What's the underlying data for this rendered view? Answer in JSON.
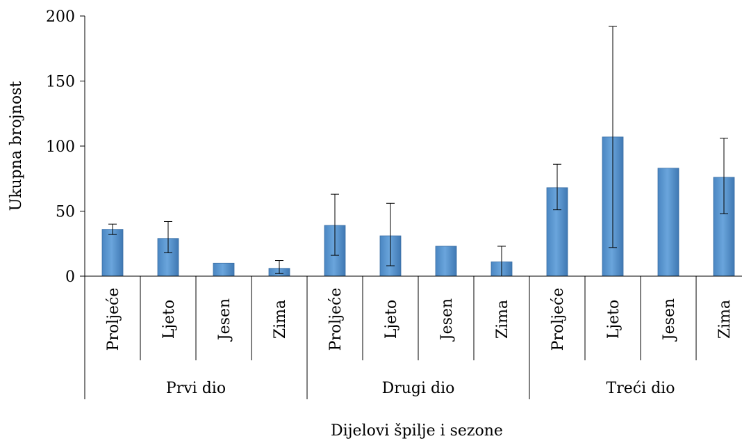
{
  "chart_data": {
    "type": "bar",
    "xlabel": "Dijelovi špilje i sezone",
    "ylabel": "Ukupna brojnost",
    "ylim": [
      0,
      200
    ],
    "yticks": [
      0,
      50,
      100,
      150,
      200
    ],
    "groups": [
      {
        "name": "Prvi dio",
        "categories": [
          "Proljeće",
          "Ljeto",
          "Jesen",
          "Zima"
        ]
      },
      {
        "name": "Drugi dio",
        "categories": [
          "Proljeće",
          "Ljeto",
          "Jesen",
          "Zima"
        ]
      },
      {
        "name": "Treći dio",
        "categories": [
          "Proljeće",
          "Ljeto",
          "Jesen",
          "Zima"
        ]
      }
    ],
    "values": [
      36,
      29,
      10,
      6,
      39,
      31,
      23,
      11,
      68,
      107,
      83,
      76
    ],
    "error_bars": [
      [
        32,
        40
      ],
      [
        18,
        42
      ],
      null,
      [
        2,
        12
      ],
      [
        16,
        63
      ],
      [
        8,
        56
      ],
      null,
      [
        0,
        23
      ],
      [
        51,
        86
      ],
      [
        22,
        192
      ],
      null,
      [
        48,
        106
      ]
    ],
    "bar_color": "#5b9bd5",
    "grid": false,
    "legend": "none"
  }
}
